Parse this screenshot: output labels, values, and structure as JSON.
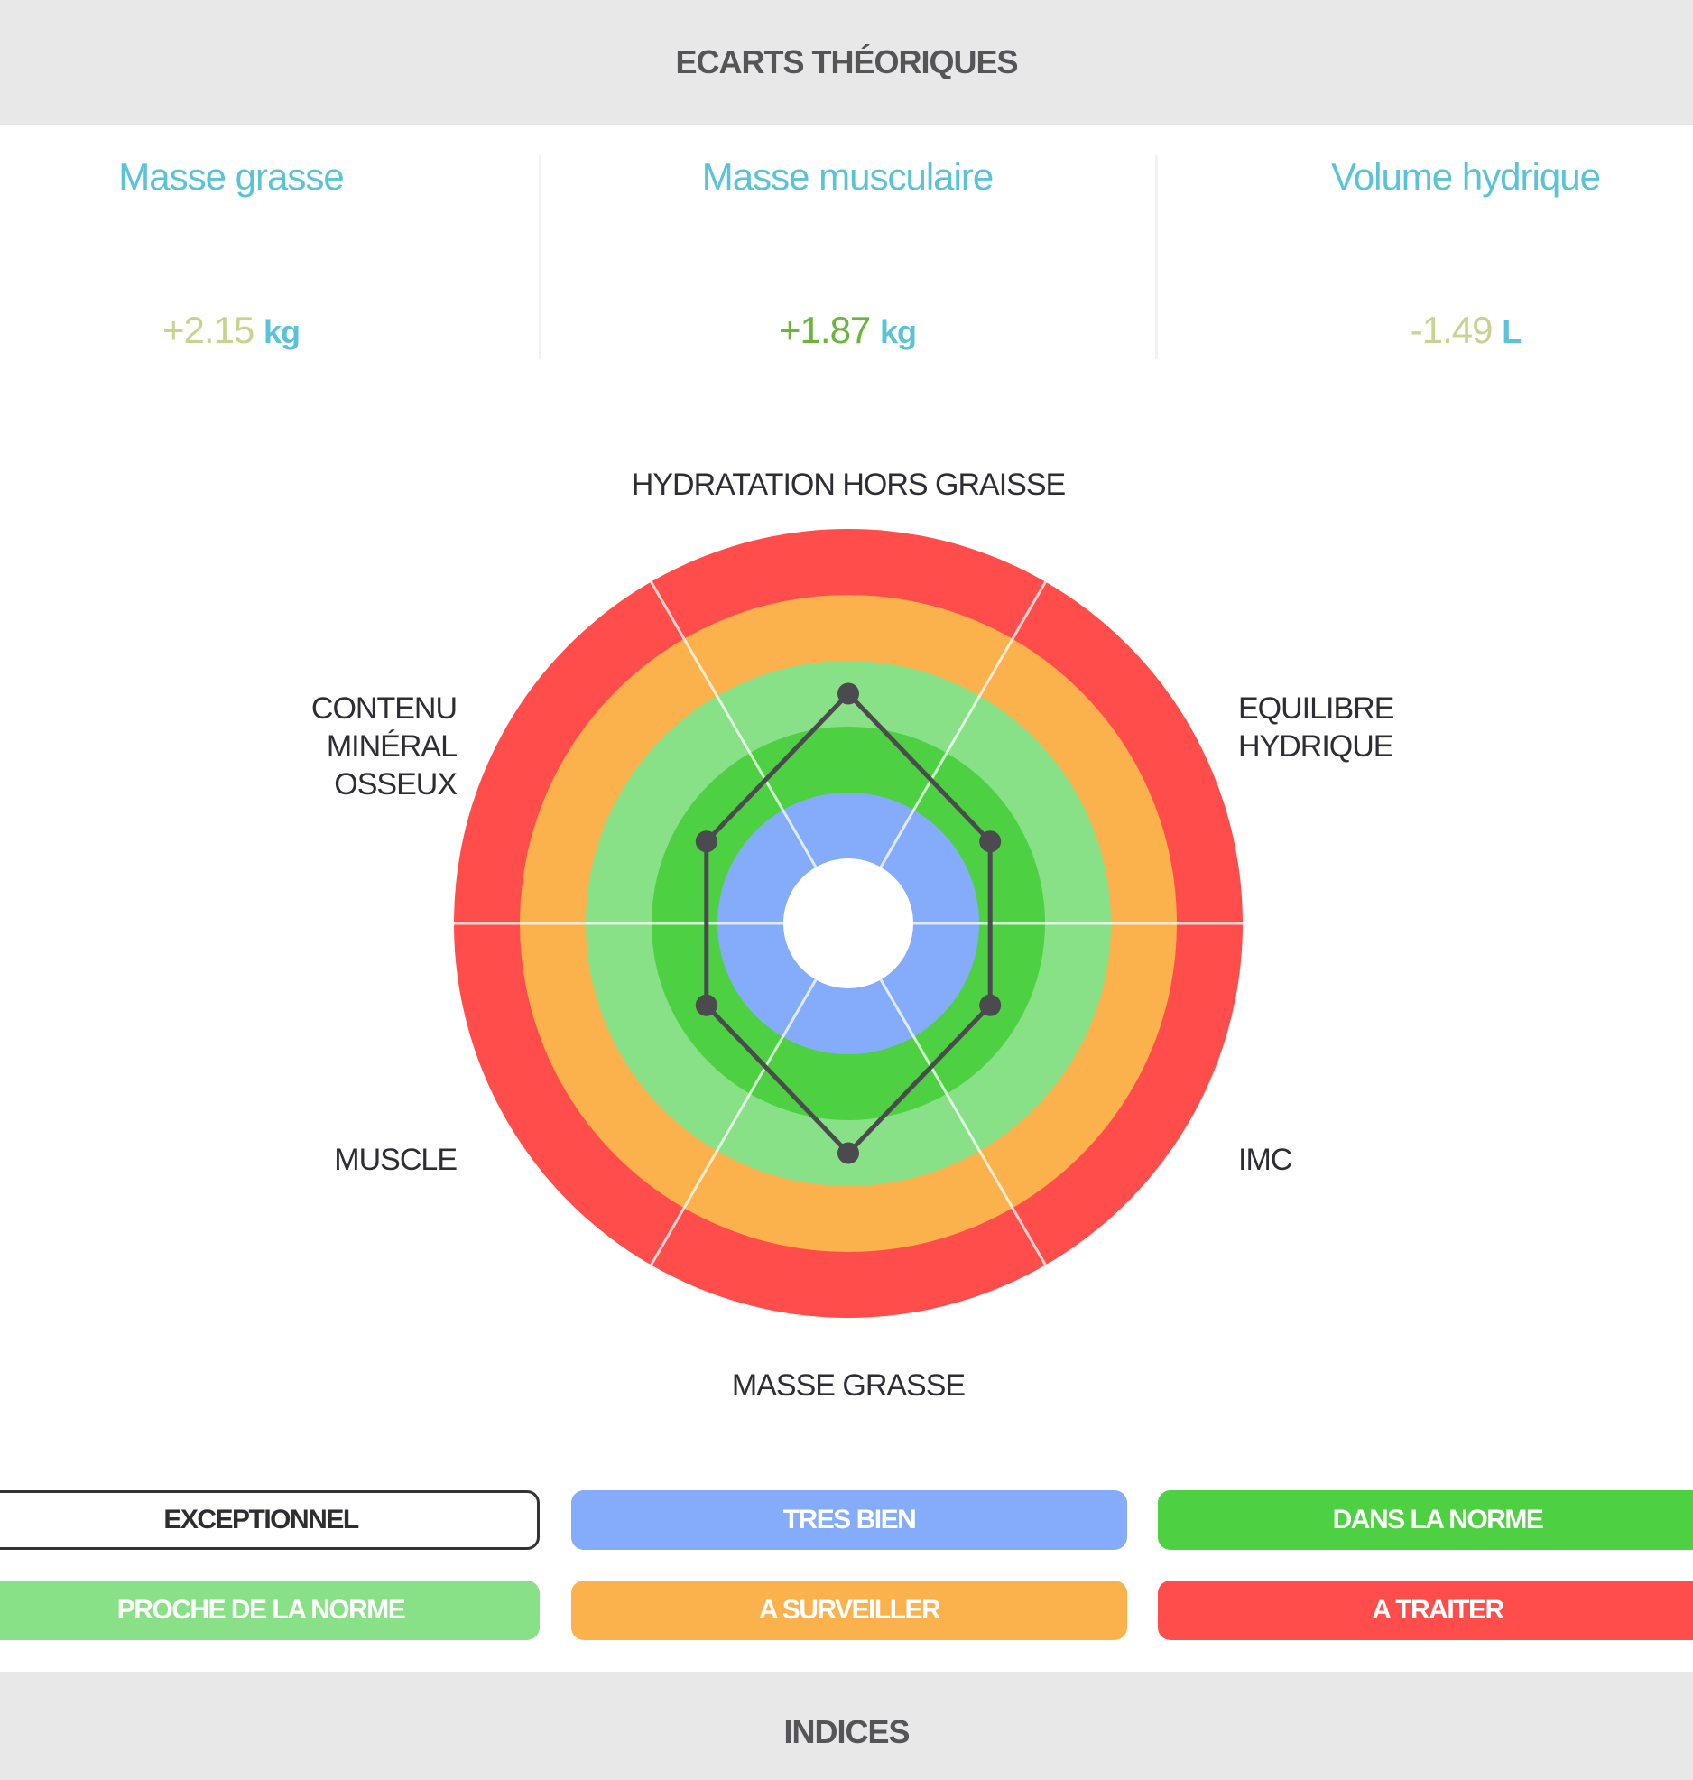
{
  "section_header": {
    "title": "ECARTS THÉORIQUES"
  },
  "metrics": [
    {
      "label": "Masse grasse",
      "value": "+2.15",
      "unit": "kg",
      "value_color": "#c7d48f"
    },
    {
      "label": "Masse musculaire",
      "value": "+1.87",
      "unit": "kg",
      "value_color": "#6cb43c"
    },
    {
      "label": "Volume hydrique",
      "value": "-1.49",
      "unit": "L",
      "value_color": "#c7d48f"
    }
  ],
  "chart_data": {
    "type": "radar",
    "title": "",
    "axes": [
      "HYDRATATION HORS GRAISSE",
      "EQUILIBRE HYDRIQUE",
      "IMC",
      "MASSE GRASSE",
      "MUSCLE",
      "CONTENU MINÉRAL OSSEUX"
    ],
    "rings": [
      {
        "level": "TRES BIEN",
        "color": "#85acfa"
      },
      {
        "level": "DANS LA NORME",
        "color": "#4dd042"
      },
      {
        "level": "PROCHE DE LA NORME",
        "color": "#88e186"
      },
      {
        "level": "A SURVEILLER",
        "color": "#fbb24c"
      },
      {
        "level": "A TRAITER",
        "color": "#fe4d4a"
      }
    ],
    "scale_note": "0 = center (exceptionnel), each ring = 1 unit, outer edge = 5",
    "values": [
      2.5,
      1.5,
      1.5,
      2.5,
      1.5,
      1.5
    ],
    "series_color": "#4a4a4f",
    "grid": true,
    "legend_position": "bottom"
  },
  "legend": [
    {
      "label": "EXCEPTIONNEL",
      "bg": "#ffffff",
      "text": "#2d2d33",
      "border": "#333333"
    },
    {
      "label": "TRES BIEN",
      "bg": "#85acfa",
      "text": "#ffffff",
      "border": "none"
    },
    {
      "label": "DANS LA NORME",
      "bg": "#4dd042",
      "text": "#ffffff",
      "border": "none"
    },
    {
      "label": "PROCHE DE LA NORME",
      "bg": "#88e186",
      "text": "#ffffff",
      "border": "none"
    },
    {
      "label": "A SURVEILLER",
      "bg": "#fbb24c",
      "text": "#ffffff",
      "border": "none"
    },
    {
      "label": "A TRAITER",
      "bg": "#fe4d4a",
      "text": "#ffffff",
      "border": "none"
    }
  ],
  "next_section": {
    "title": "INDICES"
  }
}
